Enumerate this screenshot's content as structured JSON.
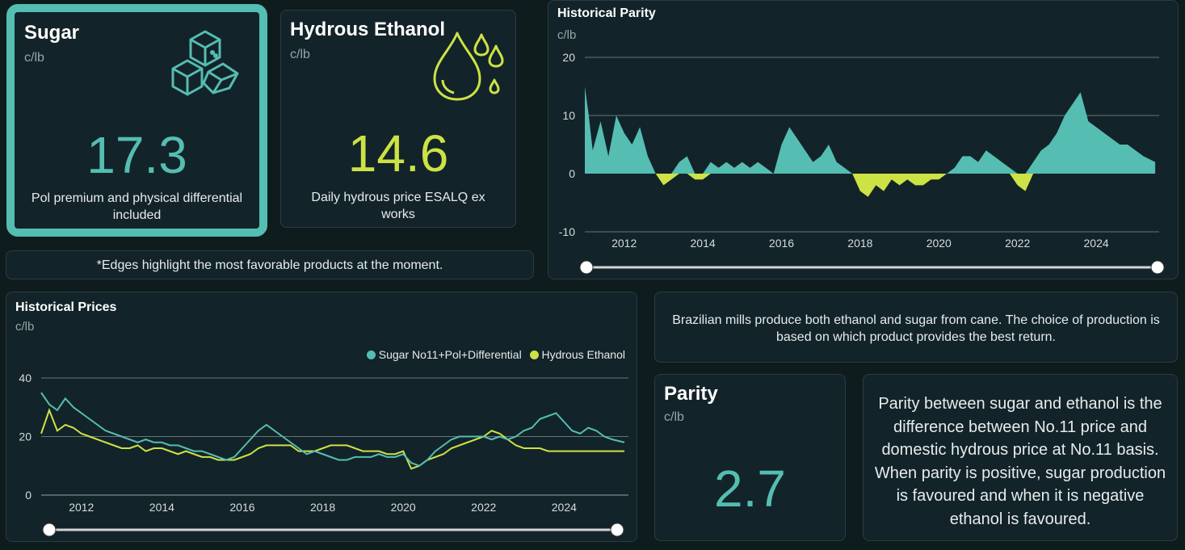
{
  "colors": {
    "teal": "#55bdb2",
    "lime": "#cde244",
    "bg": "#0f1c1e",
    "card": "#13232a"
  },
  "sugar_card": {
    "title": "Sugar",
    "unit": "c/lb",
    "value": "17.3",
    "description": "Pol premium and physical differential included",
    "icon": "sugar-cubes-icon"
  },
  "ethanol_card": {
    "title": "Hydrous Ethanol",
    "unit": "c/lb",
    "value": "14.6",
    "description": "Daily hydrous price ESALQ ex works",
    "icon": "droplets-icon"
  },
  "edges_note": "*Edges highlight the most favorable products at the moment.",
  "parity_chart": {
    "title": "Historical Parity",
    "unit": "c/lb",
    "y_ticks": [
      "20",
      "10",
      "0",
      "-10"
    ],
    "x_ticks": [
      "2012",
      "2014",
      "2016",
      "2018",
      "2020",
      "2022",
      "2024"
    ]
  },
  "prices_chart": {
    "title": "Historical Prices",
    "unit": "c/lb",
    "legend": [
      "Sugar No11+Pol+Differential",
      "Hydrous Ethanol"
    ],
    "y_ticks": [
      "40",
      "20",
      "0"
    ],
    "x_ticks": [
      "2012",
      "2014",
      "2016",
      "2018",
      "2020",
      "2022",
      "2024"
    ]
  },
  "info_text": "Brazilian mills produce both ethanol and sugar from cane. The choice of production is based on which product provides the best return.",
  "parity_card": {
    "title": "Parity",
    "unit": "c/lb",
    "value": "2.7"
  },
  "parity_explainer": "Parity between sugar and ethanol is the difference between No.11 price and domestic hydrous price at No.11 basis. When parity is positive, sugar production is favoured and when it is negative ethanol is favoured.",
  "chart_data": [
    {
      "type": "area",
      "title": "Historical Parity",
      "ylabel": "c/lb",
      "ylim": [
        -10,
        20
      ],
      "grid": true,
      "x": [
        2011.0,
        2011.1,
        2011.2,
        2011.4,
        2011.6,
        2011.8,
        2012.0,
        2012.2,
        2012.4,
        2012.6,
        2012.8,
        2013.0,
        2013.2,
        2013.4,
        2013.6,
        2013.8,
        2014.0,
        2014.2,
        2014.4,
        2014.6,
        2014.8,
        2015.0,
        2015.2,
        2015.4,
        2015.6,
        2015.8,
        2016.0,
        2016.2,
        2016.4,
        2016.6,
        2016.8,
        2017.0,
        2017.2,
        2017.4,
        2017.6,
        2017.8,
        2018.0,
        2018.2,
        2018.4,
        2018.6,
        2018.8,
        2019.0,
        2019.2,
        2019.4,
        2019.6,
        2019.8,
        2020.0,
        2020.2,
        2020.4,
        2020.6,
        2020.8,
        2021.0,
        2021.2,
        2021.4,
        2021.6,
        2021.8,
        2022.0,
        2022.2,
        2022.4,
        2022.6,
        2022.8,
        2023.0,
        2023.2,
        2023.4,
        2023.6,
        2023.8,
        2024.0,
        2024.2,
        2024.4,
        2024.6,
        2024.8,
        2025.0,
        2025.2,
        2025.5
      ],
      "values": [
        15,
        10,
        4,
        9,
        3,
        10,
        7,
        5,
        8,
        3,
        0,
        -2,
        -1,
        2,
        3,
        -1,
        -1,
        2,
        1,
        2,
        1,
        2,
        1,
        2,
        1,
        0,
        5,
        8,
        6,
        4,
        2,
        3,
        5,
        2,
        1,
        0,
        -3,
        -4,
        -2,
        -3,
        -1,
        -2,
        -1,
        -2,
        -2,
        -1,
        -1,
        0,
        1,
        3,
        3,
        2,
        4,
        3,
        2,
        1,
        -2,
        -3,
        2,
        4,
        5,
        7,
        10,
        12,
        14,
        9,
        8,
        7,
        6,
        5,
        5,
        4,
        3,
        2
      ]
    },
    {
      "type": "line",
      "title": "Historical Prices",
      "ylabel": "c/lb",
      "ylim": [
        0,
        40
      ],
      "grid": true,
      "legend": "top-right",
      "x": [
        2011.0,
        2011.2,
        2011.4,
        2011.6,
        2011.8,
        2012.0,
        2012.2,
        2012.4,
        2012.6,
        2012.8,
        2013.0,
        2013.2,
        2013.4,
        2013.6,
        2013.8,
        2014.0,
        2014.2,
        2014.4,
        2014.6,
        2014.8,
        2015.0,
        2015.2,
        2015.4,
        2015.6,
        2015.8,
        2016.0,
        2016.2,
        2016.4,
        2016.6,
        2016.8,
        2017.0,
        2017.2,
        2017.4,
        2017.6,
        2017.8,
        2018.0,
        2018.2,
        2018.4,
        2018.6,
        2018.8,
        2019.0,
        2019.2,
        2019.4,
        2019.6,
        2019.8,
        2020.0,
        2020.2,
        2020.4,
        2020.6,
        2020.8,
        2021.0,
        2021.2,
        2021.4,
        2021.6,
        2021.8,
        2022.0,
        2022.2,
        2022.4,
        2022.6,
        2022.8,
        2023.0,
        2023.2,
        2023.4,
        2023.6,
        2023.8,
        2024.0,
        2024.2,
        2024.4,
        2024.6,
        2024.8,
        2025.0,
        2025.2,
        2025.5
      ],
      "series": [
        {
          "name": "Sugar No11+Pol+Differential",
          "values": [
            35,
            31,
            29,
            33,
            30,
            28,
            26,
            24,
            22,
            21,
            20,
            19,
            18,
            19,
            18,
            18,
            17,
            17,
            16,
            15,
            15,
            14,
            13,
            12,
            13,
            16,
            19,
            22,
            24,
            22,
            20,
            18,
            16,
            14,
            15,
            14,
            13,
            12,
            12,
            13,
            13,
            13,
            14,
            13,
            13,
            14,
            11,
            10,
            12,
            15,
            17,
            19,
            20,
            20,
            20,
            20,
            19,
            20,
            19,
            20,
            22,
            23,
            26,
            27,
            28,
            25,
            22,
            21,
            23,
            22,
            20,
            19,
            18
          ]
        },
        {
          "name": "Hydrous Ethanol",
          "values": [
            21,
            29,
            22,
            24,
            23,
            21,
            20,
            19,
            18,
            17,
            16,
            16,
            17,
            15,
            16,
            16,
            15,
            14,
            15,
            14,
            13,
            13,
            12,
            12,
            12,
            13,
            14,
            16,
            17,
            17,
            17,
            17,
            15,
            15,
            15,
            16,
            17,
            17,
            17,
            16,
            15,
            15,
            15,
            14,
            14,
            15,
            9,
            10,
            12,
            13,
            14,
            16,
            17,
            18,
            19,
            20,
            22,
            21,
            19,
            17,
            16,
            16,
            16,
            15,
            15,
            15,
            15,
            15,
            15,
            15,
            15,
            15,
            15
          ]
        }
      ]
    }
  ]
}
